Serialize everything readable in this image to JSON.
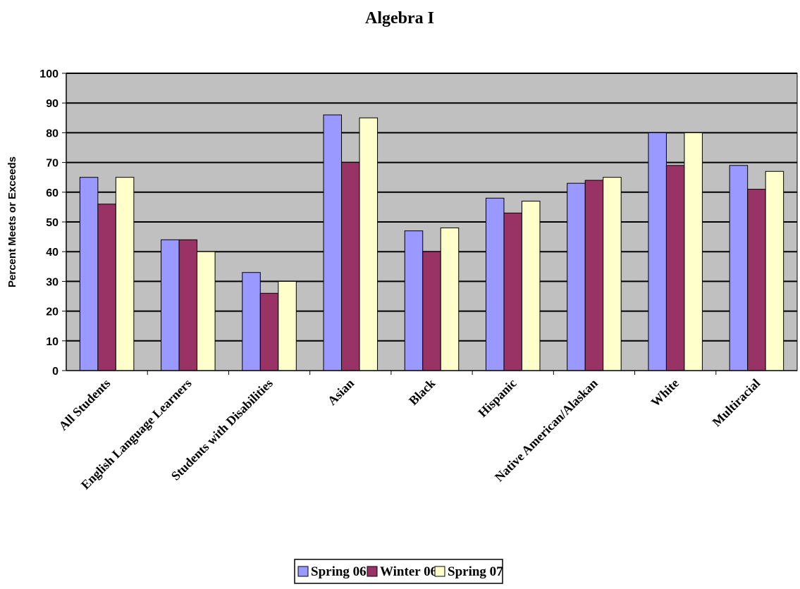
{
  "chart_data": {
    "type": "bar",
    "title": "Algebra I",
    "xlabel": "",
    "ylabel": "Percent Meets or Exceeds",
    "ylim": [
      0,
      100
    ],
    "yticks": [
      "0",
      "10",
      "20",
      "30",
      "40",
      "50",
      "60",
      "70",
      "80",
      "90",
      "100"
    ],
    "grid": true,
    "legend_position": "bottom",
    "categories": [
      "All Students",
      "English Language Learners",
      "Students with Disabilities",
      "Asian",
      "Black",
      "Hispanic",
      "Native American/Alaskan",
      "White",
      "Multiracial"
    ],
    "series": [
      {
        "name": "Spring 06",
        "color": "#9999ff",
        "values": [
          65,
          44,
          33,
          86,
          47,
          58,
          63,
          80,
          69
        ]
      },
      {
        "name": "Winter 06",
        "color": "#993366",
        "values": [
          56,
          44,
          26,
          70,
          40,
          53,
          64,
          69,
          61
        ]
      },
      {
        "name": "Spring 07",
        "color": "#ffffcc",
        "values": [
          65,
          40,
          30,
          85,
          48,
          57,
          65,
          80,
          67
        ]
      }
    ],
    "plot_background": "#c0c0c0"
  }
}
